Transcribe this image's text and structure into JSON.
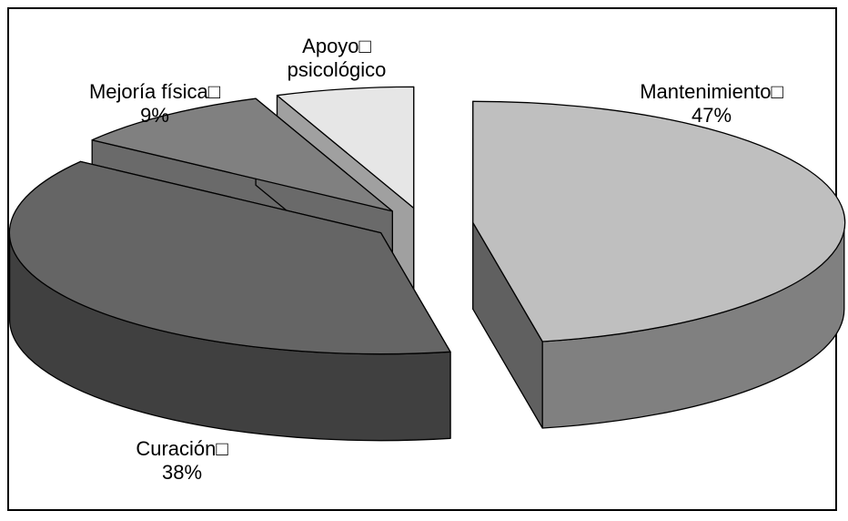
{
  "chart_data": {
    "type": "pie",
    "style": "3d-exploded",
    "categories": [
      "Mantenimiento",
      "Curación",
      "Mejoría física",
      "Apoyo psicológico"
    ],
    "values": [
      47,
      38,
      9,
      6
    ],
    "label_lines": [
      [
        "Mantenimiento□",
        "47%"
      ],
      [
        "Curación□",
        "38%"
      ],
      [
        "Mejoría física□",
        "9%"
      ],
      [
        "Apoyo□",
        "psicológico"
      ]
    ],
    "colors": {
      "top": [
        "#bfbfbf",
        "#656565",
        "#808080",
        "#e6e6e6"
      ],
      "side": [
        "#808080",
        "#404040",
        "#555555",
        "#b0b0b0"
      ],
      "radial": [
        "#606060",
        "#505050",
        "#6a6a6a",
        "#a0a0a0"
      ]
    },
    "legend": "none"
  }
}
